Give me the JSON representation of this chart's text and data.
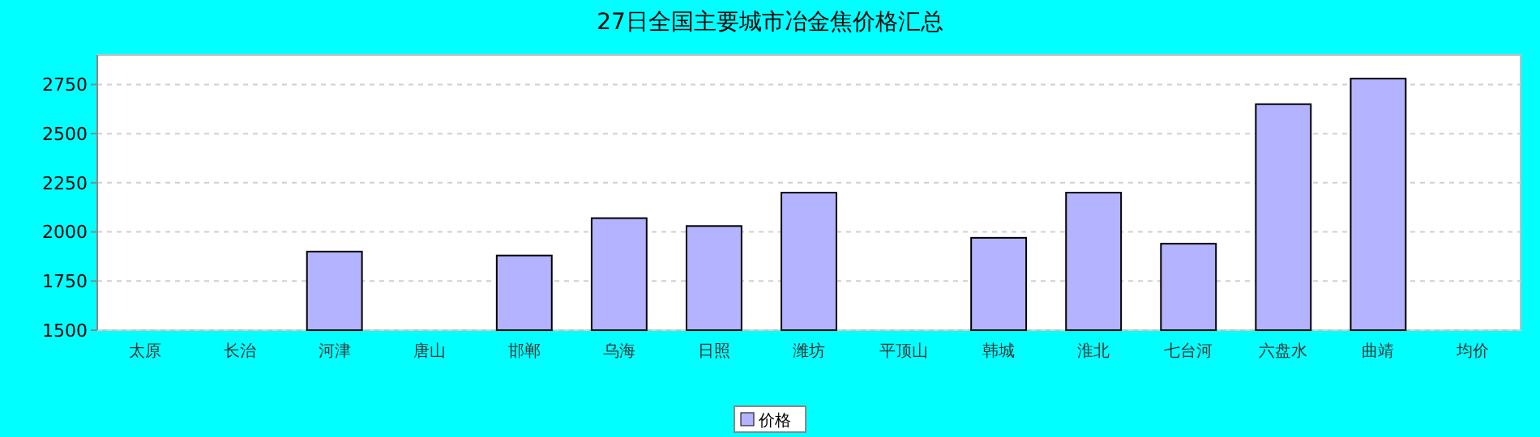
{
  "chart_data": {
    "type": "bar",
    "title": "27日全国主要城市冶金焦价格汇总",
    "categories": [
      "太原",
      "长治",
      "河津",
      "唐山",
      "邯郸",
      "乌海",
      "日照",
      "潍坊",
      "平顶山",
      "韩城",
      "淮北",
      "七台河",
      "六盘水",
      "曲靖",
      "均价"
    ],
    "series": [
      {
        "name": "价格",
        "color": "#b3b3ff",
        "values": [
          null,
          null,
          1900,
          null,
          1880,
          2070,
          2030,
          2200,
          null,
          1970,
          2200,
          1940,
          2650,
          2780,
          null
        ]
      }
    ],
    "ylim": [
      1500,
      2900
    ],
    "yticks": [
      1500,
      1750,
      2000,
      2250,
      2500,
      2750
    ],
    "grid": "y",
    "legend": "bottom"
  }
}
